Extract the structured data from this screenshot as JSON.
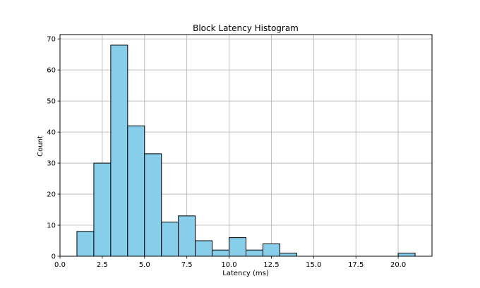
{
  "chart_data": {
    "type": "bar",
    "title": "Block Latency Histogram",
    "xlabel": "Latency (ms)",
    "ylabel": "Count",
    "xlim": [
      0,
      22
    ],
    "ylim": [
      0,
      71.4
    ],
    "grid": true,
    "bar_color": "#87CEEB",
    "edge_color": "#000000",
    "x_ticks": [
      "0.0",
      "2.5",
      "5.0",
      "7.5",
      "10.0",
      "12.5",
      "15.0",
      "17.5",
      "20.0"
    ],
    "x_tick_values": [
      0,
      2.5,
      5,
      7.5,
      10,
      12.5,
      15,
      17.5,
      20
    ],
    "y_ticks": [
      "0",
      "10",
      "20",
      "30",
      "40",
      "50",
      "60",
      "70"
    ],
    "y_tick_values": [
      0,
      10,
      20,
      30,
      40,
      50,
      60,
      70
    ],
    "bins": [
      {
        "start": 1,
        "end": 2,
        "count": 8
      },
      {
        "start": 2,
        "end": 3,
        "count": 30
      },
      {
        "start": 3,
        "end": 4,
        "count": 68
      },
      {
        "start": 4,
        "end": 5,
        "count": 42
      },
      {
        "start": 5,
        "end": 6,
        "count": 33
      },
      {
        "start": 6,
        "end": 7,
        "count": 11
      },
      {
        "start": 7,
        "end": 8,
        "count": 13
      },
      {
        "start": 8,
        "end": 9,
        "count": 5
      },
      {
        "start": 9,
        "end": 10,
        "count": 2
      },
      {
        "start": 10,
        "end": 11,
        "count": 6
      },
      {
        "start": 11,
        "end": 12,
        "count": 2
      },
      {
        "start": 12,
        "end": 13,
        "count": 4
      },
      {
        "start": 13,
        "end": 14,
        "count": 1
      },
      {
        "start": 14,
        "end": 15,
        "count": 0
      },
      {
        "start": 15,
        "end": 16,
        "count": 0
      },
      {
        "start": 16,
        "end": 17,
        "count": 0
      },
      {
        "start": 17,
        "end": 18,
        "count": 0
      },
      {
        "start": 18,
        "end": 19,
        "count": 0
      },
      {
        "start": 19,
        "end": 20,
        "count": 0
      },
      {
        "start": 20,
        "end": 21,
        "count": 1
      }
    ]
  }
}
